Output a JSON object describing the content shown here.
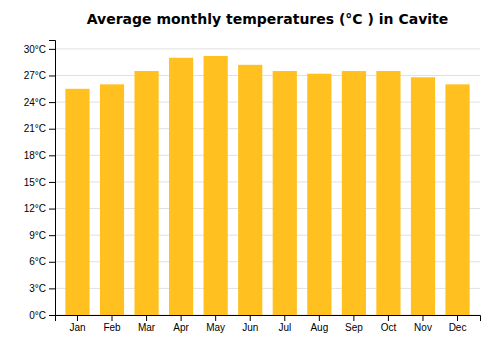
{
  "chart_data": {
    "type": "bar",
    "title": "Average monthly temperatures (°C ) in Cavite",
    "categories": [
      "Jan",
      "Feb",
      "Mar",
      "Apr",
      "May",
      "Jun",
      "Jul",
      "Aug",
      "Sep",
      "Oct",
      "Nov",
      "Dec"
    ],
    "values": [
      25.5,
      26.0,
      27.5,
      29.0,
      29.2,
      28.2,
      27.5,
      27.2,
      27.5,
      27.5,
      26.8,
      26.0
    ],
    "color": "#FFC020",
    "ylim": [
      0,
      31
    ],
    "yticks": [
      {
        "value": 0,
        "label": "0°C"
      },
      {
        "value": 3,
        "label": "3°C"
      },
      {
        "value": 6,
        "label": "6°C"
      },
      {
        "value": 9,
        "label": "9°C"
      },
      {
        "value": 12,
        "label": "12°C"
      },
      {
        "value": 15,
        "label": "15°C"
      },
      {
        "value": 18,
        "label": "18°C"
      },
      {
        "value": 21,
        "label": "21°C"
      },
      {
        "value": 24,
        "label": "24°C"
      },
      {
        "value": 27,
        "label": "27°C"
      },
      {
        "value": 30,
        "label": "30°C"
      }
    ],
    "grid": true
  }
}
